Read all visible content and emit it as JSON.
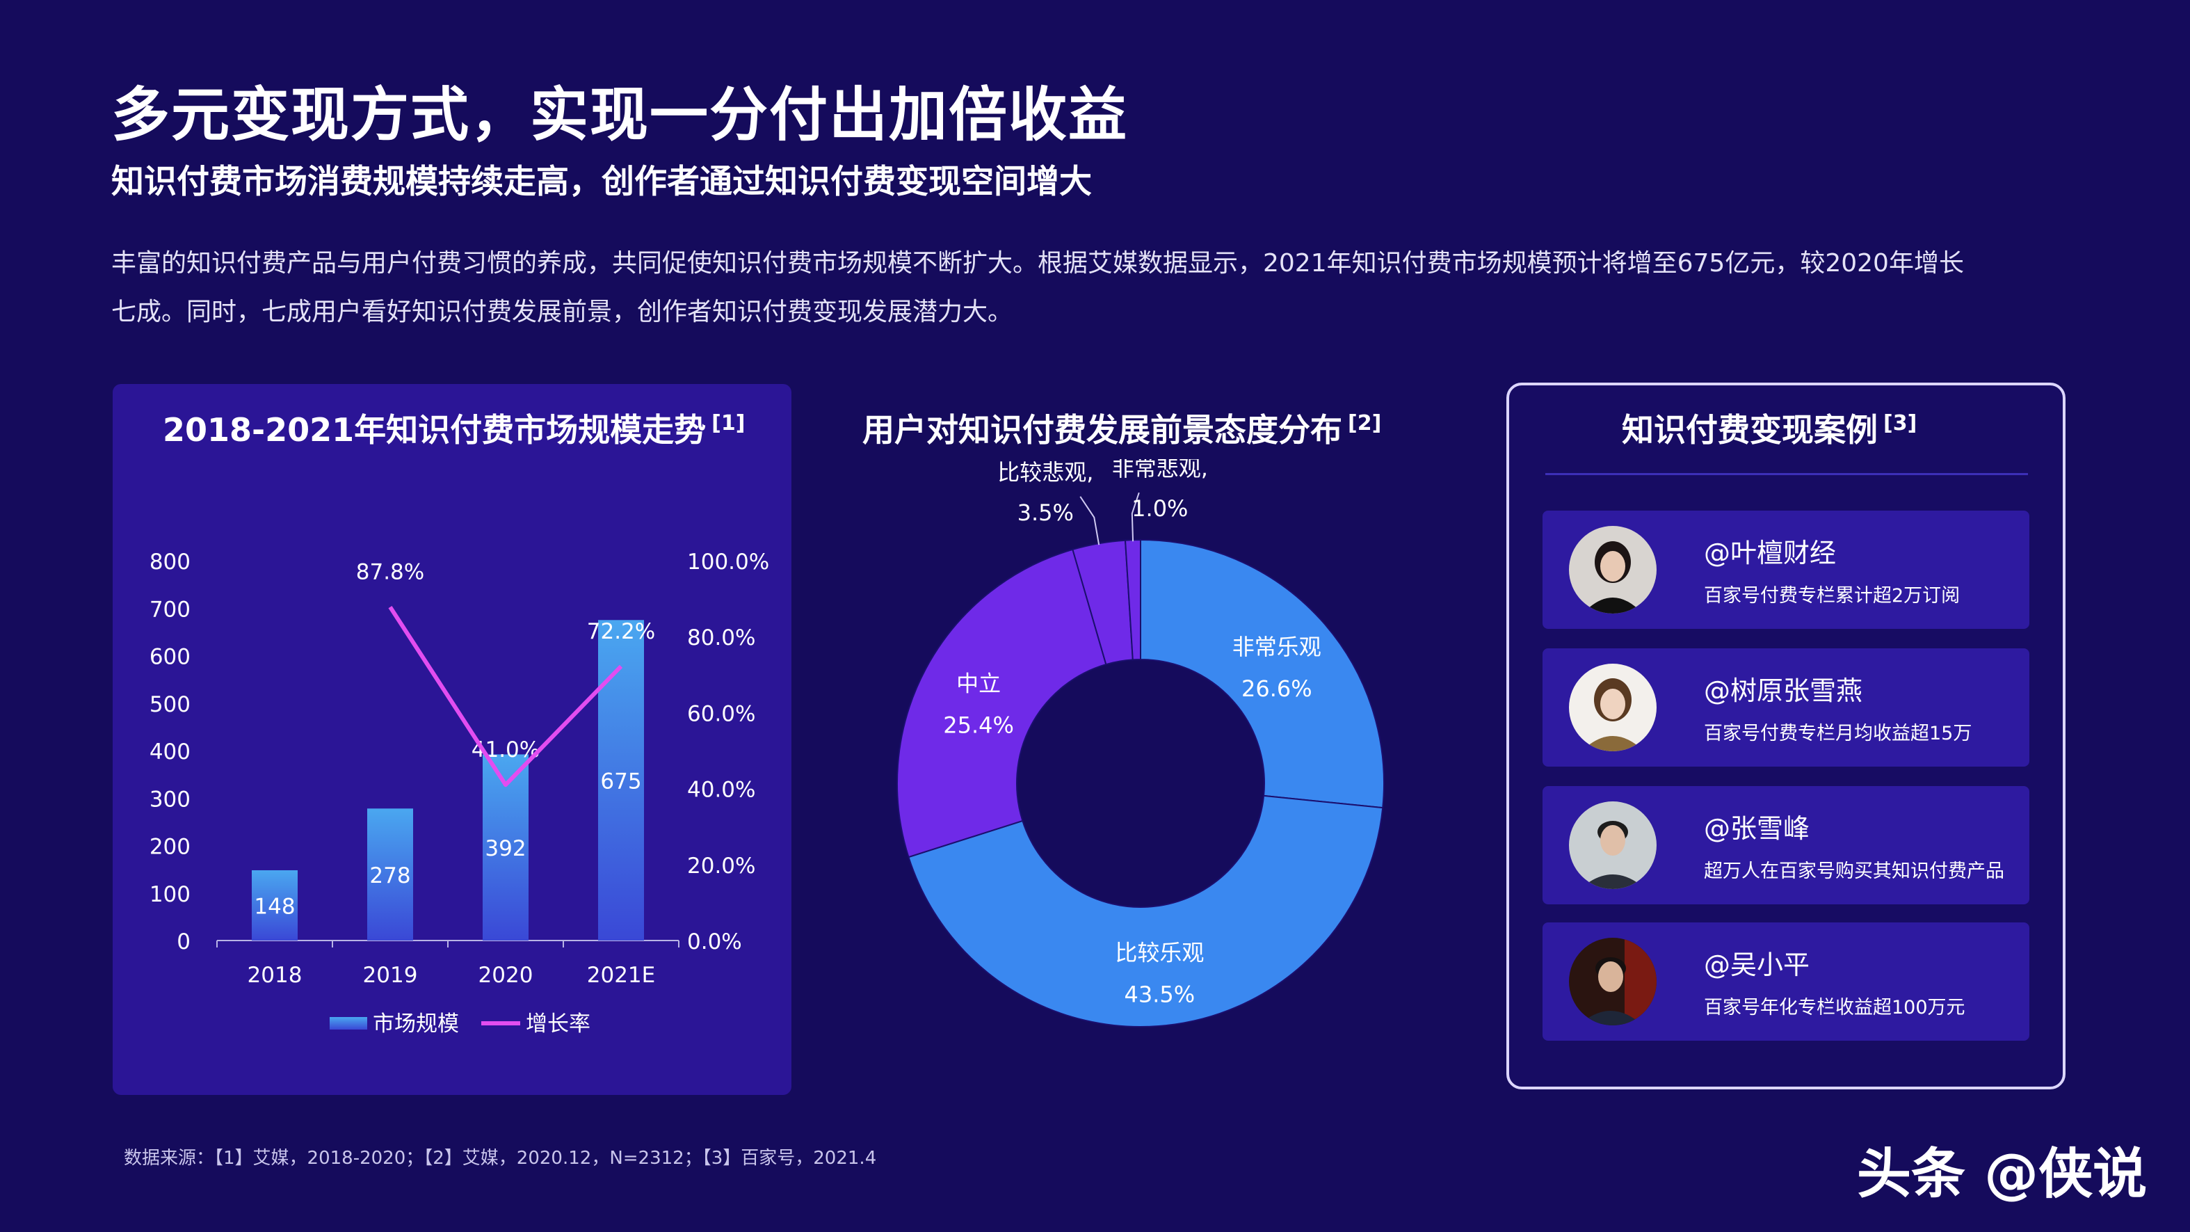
{
  "page": {
    "title": "多元变现方式，实现一分付出加倍收益",
    "subtitle": "知识付费市场消费规模持续走高，创作者通过知识付费变现空间增大",
    "paragraph_line1": "丰富的知识付费产品与用户付费习惯的养成，共同促使知识付费市场规模不断扩大。根据艾媒数据显示，2021年知识付费市场规模预计将增至675亿元，较2020年增长",
    "paragraph_line2": "七成。同时，七成用户看好知识付费发展前景，创作者知识付费变现发展潜力大。",
    "source": "数据来源：【1】艾媒，2018-2020；【2】艾媒，2020.12，N=2312；【3】百家号，2021.4",
    "watermark": "头条 @侠说"
  },
  "colors": {
    "background": "#150b5c",
    "panel": "#2b1596",
    "bar_top": "#4aa7f0",
    "bar_bottom": "#3a48d6",
    "line": "#e24df0",
    "donut_blue": "#3a88f0",
    "donut_purple": "#6f2ae8",
    "card": "#2e1aa0"
  },
  "chart_data": [
    {
      "type": "bar",
      "title": "2018-2021年知识付费市场规模走势",
      "title_ref": "[1]",
      "categories": [
        "2018",
        "2019",
        "2020",
        "2021E"
      ],
      "series": [
        {
          "name": "市场规模",
          "values": [
            148,
            278,
            392,
            675
          ],
          "labels": [
            "148",
            "278",
            "392",
            "675"
          ]
        },
        {
          "name": "增长率",
          "type": "line",
          "values": [
            null,
            87.8,
            41.0,
            72.2
          ],
          "labels": [
            "",
            "87.8%",
            "41.0%",
            "72.2%"
          ]
        }
      ],
      "left_ticks": [
        "0",
        "100",
        "200",
        "300",
        "400",
        "500",
        "600",
        "700",
        "800"
      ],
      "right_ticks": [
        "0.0%",
        "20.0%",
        "40.0%",
        "60.0%",
        "80.0%",
        "100.0%"
      ],
      "ylim": [
        0,
        800
      ],
      "y2lim": [
        0,
        100
      ],
      "legend_position": "bottom",
      "grid": false
    },
    {
      "type": "pie",
      "style": "donut",
      "title": "用户对知识付费发展前景态度分布",
      "title_ref": "[2]",
      "slices": [
        {
          "name": "非常乐观",
          "value": 26.6,
          "label": "26.6%",
          "color": "#3a88f0"
        },
        {
          "name": "比较乐观",
          "value": 43.5,
          "label": "43.5%",
          "color": "#3a88f0"
        },
        {
          "name": "中立",
          "value": 25.4,
          "label": "25.4%",
          "color": "#6f2ae8"
        },
        {
          "name": "比较悲观,",
          "value": 3.5,
          "label": "3.5%",
          "color": "#6f2ae8"
        },
        {
          "name": "非常悲观,",
          "value": 1.0,
          "label": "1.0%",
          "color": "#6f2ae8"
        }
      ]
    }
  ],
  "cases": {
    "title": "知识付费变现案例",
    "title_ref": "[3]",
    "items": [
      {
        "name": "@叶檀财经",
        "desc": "百家号付费专栏累计超2万订阅",
        "avatar_icon": "woman-portrait-icon"
      },
      {
        "name": "@树原张雪燕",
        "desc": "百家号付费专栏月均收益超15万",
        "avatar_icon": "woman-portrait-icon"
      },
      {
        "name": "@张雪峰",
        "desc": "超万人在百家号购买其知识付费产品",
        "avatar_icon": "man-portrait-icon"
      },
      {
        "name": "@吴小平",
        "desc": "百家号年化专栏收益超100万元",
        "avatar_icon": "man-portrait-icon"
      }
    ]
  }
}
